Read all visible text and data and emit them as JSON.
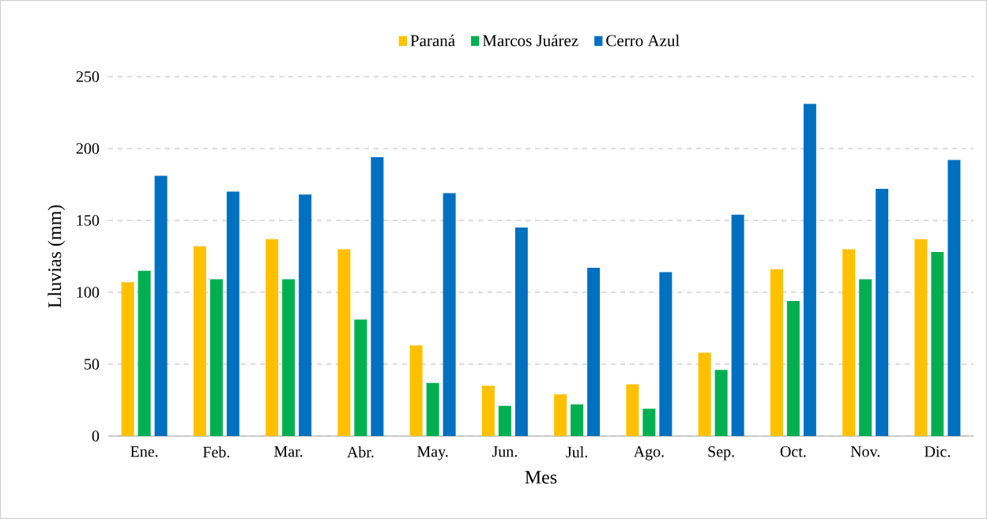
{
  "chart_data": {
    "type": "bar",
    "xlabel": "Mes",
    "ylabel": "Lluvias (mm)",
    "categories": [
      "Ene.",
      "Feb.",
      "Mar.",
      "Abr.",
      "May.",
      "Jun.",
      "Jul.",
      "Ago.",
      "Sep.",
      "Oct.",
      "Nov.",
      "Dic."
    ],
    "series": [
      {
        "name": "Paraná",
        "color": "#ffc000",
        "values": [
          107,
          132,
          137,
          130,
          63,
          35,
          29,
          36,
          58,
          116,
          130,
          137
        ]
      },
      {
        "name": "Marcos Juárez",
        "color": "#00b050",
        "values": [
          115,
          109,
          109,
          81,
          37,
          21,
          22,
          19,
          46,
          94,
          109,
          128
        ]
      },
      {
        "name": "Cerro Azul",
        "color": "#0070c0",
        "values": [
          181,
          170,
          168,
          194,
          169,
          145,
          117,
          114,
          154,
          231,
          172,
          192
        ]
      }
    ],
    "ylim": [
      0,
      250
    ],
    "yticks": [
      0,
      50,
      100,
      150,
      200,
      250
    ],
    "grid": "y",
    "legend": "top"
  }
}
